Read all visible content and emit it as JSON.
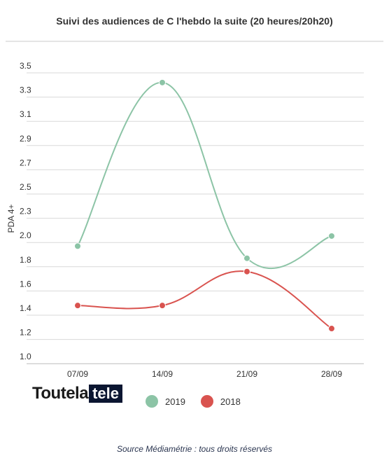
{
  "chart_data": {
    "type": "line",
    "title": "Suivi des audiences de C l'hebdo la suite (20 heures/20h20)",
    "xlabel": "",
    "ylabel": "PDA 4+",
    "categories": [
      "07/09",
      "14/09",
      "21/09",
      "28/09"
    ],
    "y_ticks": [
      "1.0",
      "1.2",
      "1.4",
      "1.6",
      "1.8",
      "2.0",
      "2.3",
      "2.5",
      "2.7",
      "2.9",
      "3.1",
      "3.3",
      "3.5"
    ],
    "ylim": [
      1.0,
      3.5
    ],
    "grid": true,
    "legend_position": "bottom",
    "series": [
      {
        "name": "2019",
        "color": "#8cc4a6",
        "values": [
          1.97,
          3.42,
          1.87,
          2.08
        ]
      },
      {
        "name": "2018",
        "color": "#d9534f",
        "values": [
          1.48,
          1.48,
          1.76,
          1.29
        ]
      }
    ]
  },
  "logo": {
    "part1": "Toutela",
    "part2": "tele"
  },
  "source": "Source Médiamétrie : tous droits réservés"
}
